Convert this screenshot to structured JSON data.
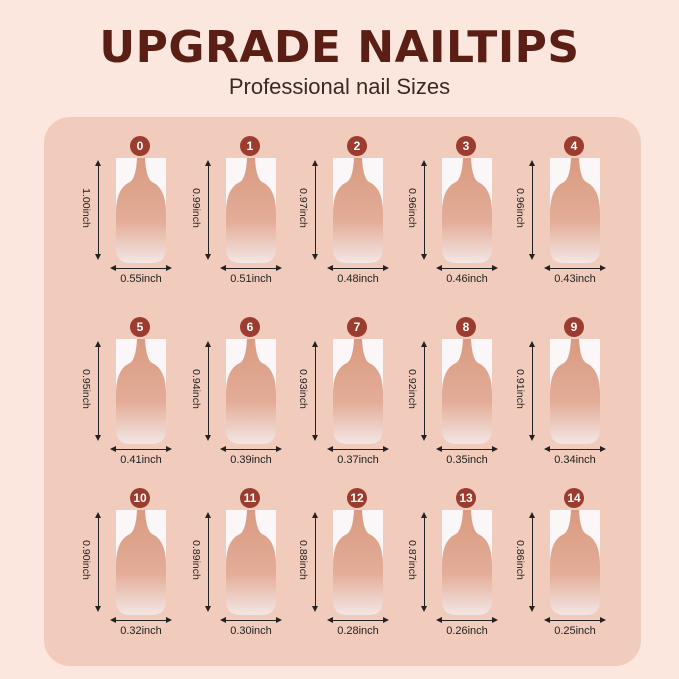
{
  "title": "UPGRADE NAILTIPS",
  "subtitle": "Professional nail Sizes",
  "colors": {
    "title": "#5b1e14",
    "badge": "#9b3c2f",
    "panel": "#f1cbbb",
    "background": "#fbe7de"
  },
  "sizes": [
    {
      "n": "0",
      "length": "1.00inch",
      "width": "0.55inch"
    },
    {
      "n": "1",
      "length": "0.99inch",
      "width": "0.51inch"
    },
    {
      "n": "2",
      "length": "0.97inch",
      "width": "0.48inch"
    },
    {
      "n": "3",
      "length": "0.96inch",
      "width": "0.46inch"
    },
    {
      "n": "4",
      "length": "0.96inch",
      "width": "0.43inch"
    },
    {
      "n": "5",
      "length": "0.95inch",
      "width": "0.41inch"
    },
    {
      "n": "6",
      "length": "0.94inch",
      "width": "0.39inch"
    },
    {
      "n": "7",
      "length": "0.93inch",
      "width": "0.37inch"
    },
    {
      "n": "8",
      "length": "0.92inch",
      "width": "0.35inch"
    },
    {
      "n": "9",
      "length": "0.91inch",
      "width": "0.34inch"
    },
    {
      "n": "10",
      "length": "0.90inch",
      "width": "0.32inch"
    },
    {
      "n": "11",
      "length": "0.89inch",
      "width": "0.30inch"
    },
    {
      "n": "12",
      "length": "0.88inch",
      "width": "0.28inch"
    },
    {
      "n": "13",
      "length": "0.87inch",
      "width": "0.26inch"
    },
    {
      "n": "14",
      "length": "0.86inch",
      "width": "0.25inch"
    }
  ]
}
